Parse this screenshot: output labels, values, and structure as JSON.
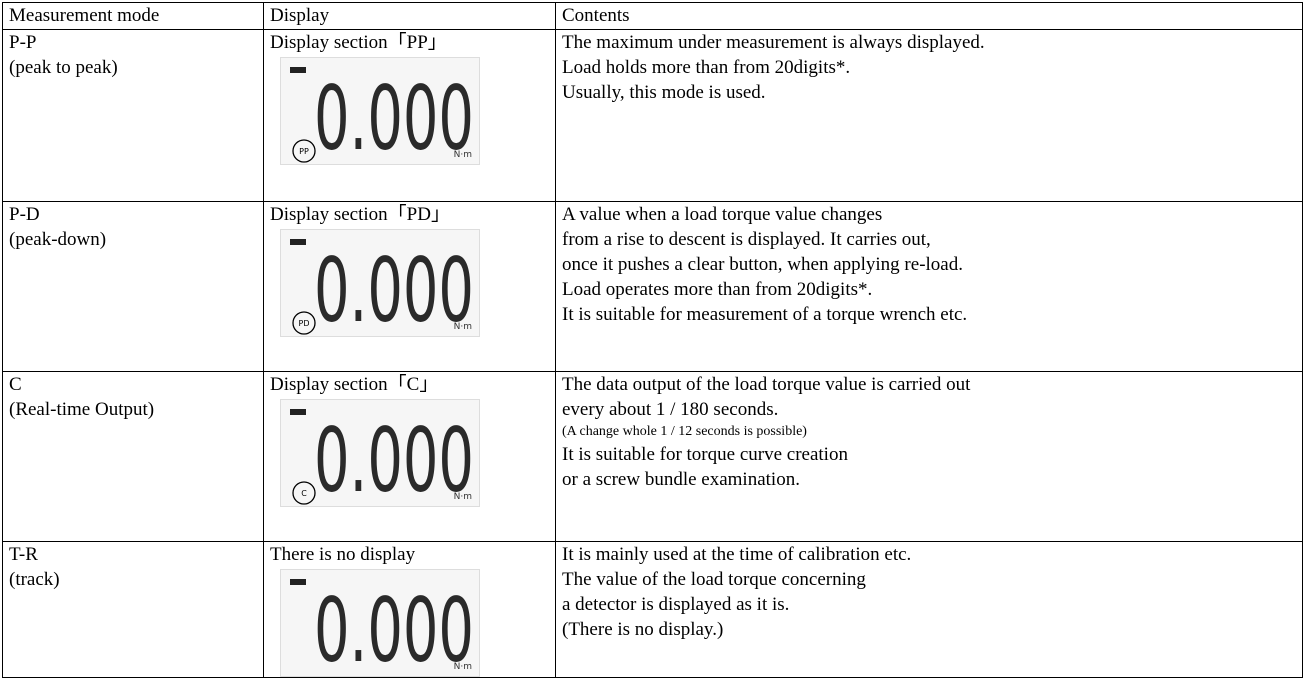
{
  "table": {
    "header": [
      "Measurement mode",
      "Display",
      "Contents"
    ],
    "rows": [
      {
        "mode": [
          "P-P",
          "(peak to peak)"
        ],
        "display": {
          "caption": "Display section「PP」",
          "reading": "0.000",
          "indicator": "PP",
          "unit": "N·m"
        },
        "contents": [
          "The maximum under measurement is always displayed.",
          "Load holds more than from 20digits*.",
          "Usually, this mode is used."
        ]
      },
      {
        "mode": [
          "P-D",
          "(peak-down)"
        ],
        "display": {
          "caption": "Display section「PD」",
          "reading": "0.000",
          "indicator": "PD",
          "unit": "N·m"
        },
        "contents": [
          "A value when a load torque value changes",
          "from a rise to descent is displayed. It carries out,",
          "once it pushes a clear button, when applying re-load.",
          "Load operates more than from 20digits*.",
          "It is suitable for measurement of a torque wrench etc."
        ]
      },
      {
        "mode": [
          "C",
          "(Real-time Output)"
        ],
        "display": {
          "caption": "Display section「C」",
          "reading": "0.000",
          "indicator": "C",
          "unit": "N·m"
        },
        "contents": [
          "The data output of the load torque value is carried out",
          "every about 1 / 180 seconds.",
          "(A change whole 1 / 12 seconds is possible)",
          "It is suitable for torque curve creation",
          "or a screw bundle examination."
        ]
      },
      {
        "mode": [
          "T-R",
          "(track)"
        ],
        "display": {
          "caption": "There is no display",
          "reading": "0.000",
          "unit": "N·m"
        },
        "contents": [
          "It is mainly used at the time of calibration etc.",
          "The value of the load torque concerning",
          "a detector is displayed as it is.",
          "(There is no display.)"
        ]
      }
    ]
  }
}
